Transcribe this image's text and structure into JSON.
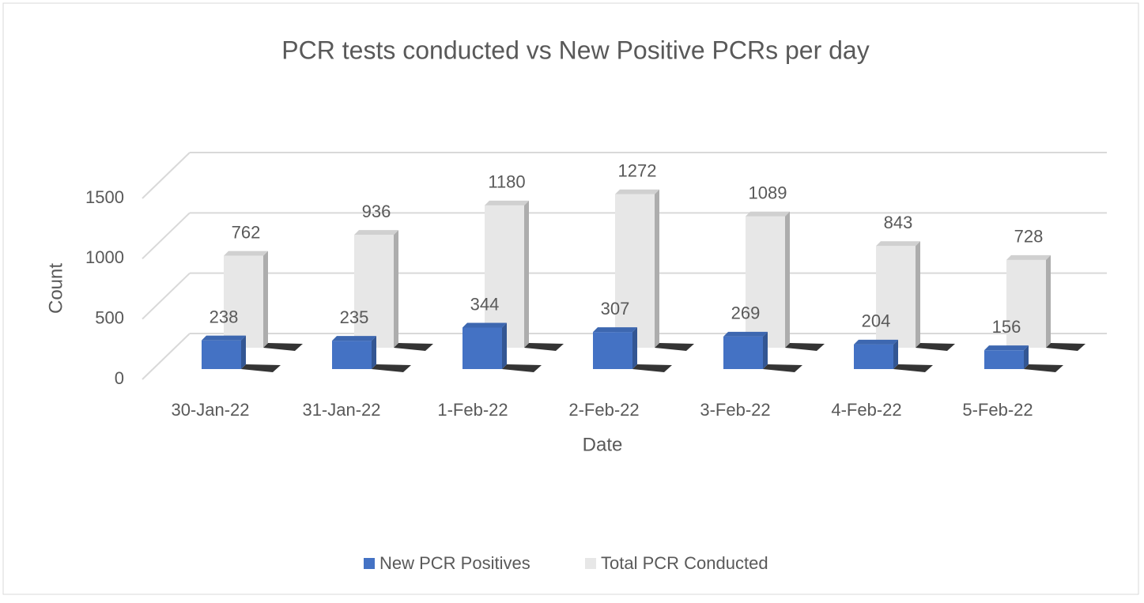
{
  "chart_data": {
    "type": "bar3d",
    "title": "PCR tests conducted vs New Positive PCRs per day",
    "x_label": "Date",
    "y_label": "Count",
    "categories": [
      "30-Jan-22",
      "31-Jan-22",
      "1-Feb-22",
      "2-Feb-22",
      "3-Feb-22",
      "4-Feb-22",
      "5-Feb-22"
    ],
    "series": [
      {
        "name": "New PCR Positives",
        "color": "#4472c4",
        "values": [
          238,
          235,
          344,
          307,
          269,
          204,
          156
        ]
      },
      {
        "name": "Total PCR Conducted",
        "color": "#e7e7e7",
        "values": [
          762,
          936,
          1180,
          1272,
          1089,
          843,
          728
        ]
      }
    ],
    "ylim": [
      0,
      1500
    ],
    "yticks": [
      0,
      500,
      1000,
      1500
    ],
    "grid": true,
    "legend": "bottom"
  }
}
